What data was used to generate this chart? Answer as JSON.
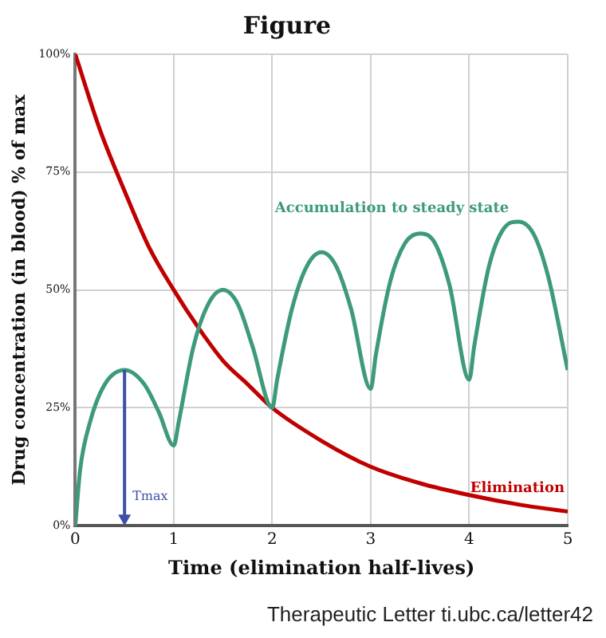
{
  "chart_data": {
    "type": "line",
    "title": "Figure",
    "xlabel": "Time (elimination half-lives)",
    "ylabel": "Drug concentration (in blood) % of max",
    "xlim": [
      0,
      5
    ],
    "xticks": [
      0,
      1,
      2,
      3,
      4,
      5
    ],
    "ylim": [
      0,
      100
    ],
    "yticks": [
      {
        "value": 0,
        "label": "0%"
      },
      {
        "value": 25,
        "label": "25%"
      },
      {
        "value": 50,
        "label": "50%"
      },
      {
        "value": 75,
        "label": "75%"
      },
      {
        "value": 100,
        "label": "100%"
      }
    ],
    "grid": true,
    "legend": false,
    "marker": "none",
    "line_style": "solid",
    "series": [
      {
        "name": "Accumulation to steady state",
        "color": "#3d9a7a",
        "x": [
          0,
          0.05,
          0.15,
          0.3,
          0.5,
          0.7,
          0.85,
          1,
          1.05,
          1.2,
          1.35,
          1.5,
          1.65,
          1.8,
          2,
          2.05,
          2.2,
          2.35,
          2.5,
          2.65,
          2.8,
          3,
          3.05,
          3.2,
          3.35,
          3.5,
          3.65,
          3.8,
          4,
          4.05,
          4.2,
          4.35,
          4.5,
          4.65,
          4.8,
          5
        ],
        "values": [
          0,
          12,
          22,
          30,
          33,
          30,
          24,
          17,
          22,
          38,
          47,
          50,
          47,
          38,
          25,
          31,
          46,
          55,
          58,
          55,
          46,
          29,
          36,
          52,
          60,
          62,
          60,
          51,
          31,
          38,
          55,
          63,
          64.5,
          62,
          53,
          33
        ]
      },
      {
        "name": "Elimination",
        "color": "#c00000",
        "x": [
          0,
          0.25,
          0.5,
          0.75,
          1,
          1.25,
          1.5,
          1.75,
          2,
          2.5,
          3,
          3.5,
          4,
          4.5,
          5
        ],
        "values": [
          100,
          84,
          71,
          59,
          50,
          42,
          35,
          30,
          25,
          18,
          12.5,
          9,
          6.5,
          4.5,
          3
        ]
      }
    ],
    "annotations": [
      "Tmax",
      "Therapeutic Letter ti.ubc.ca/letter42"
    ]
  }
}
